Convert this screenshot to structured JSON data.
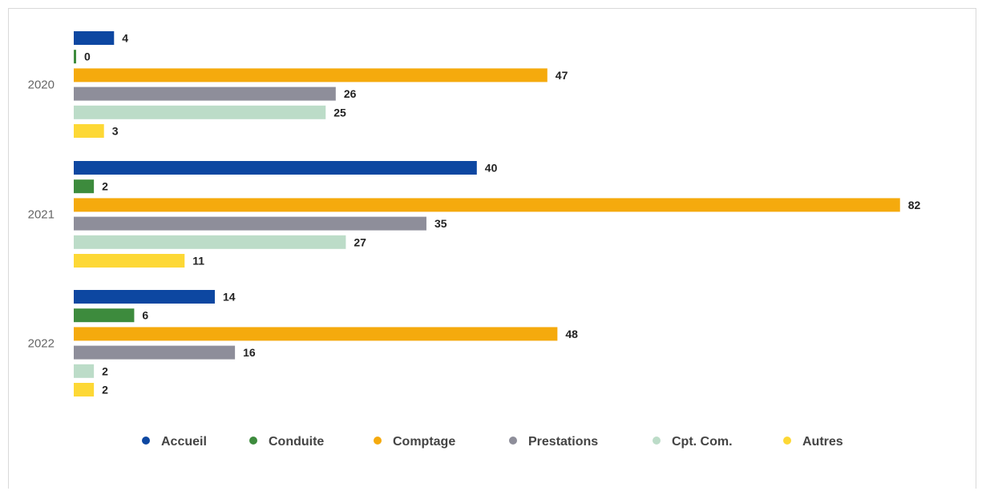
{
  "chart_data": {
    "type": "bar",
    "orientation": "horizontal",
    "title": "",
    "categories": [
      "2020",
      "2021",
      "2022"
    ],
    "series": [
      {
        "name": "Accueil",
        "color": "#0d47a1",
        "values": [
          4,
          40,
          14
        ]
      },
      {
        "name": "Conduite",
        "color": "#3d8b3d",
        "values": [
          0,
          2,
          6
        ]
      },
      {
        "name": "Comptage",
        "color": "#f5aa0d",
        "values": [
          47,
          82,
          48
        ]
      },
      {
        "name": "Prestations",
        "color": "#8e8e9a",
        "values": [
          26,
          35,
          16
        ]
      },
      {
        "name": "Cpt. Com.",
        "color": "#bcdcc8",
        "values": [
          25,
          27,
          2
        ]
      },
      {
        "name": "Autres",
        "color": "#fdd835",
        "values": [
          3,
          11,
          2
        ]
      }
    ],
    "xlim": [
      0,
      84
    ],
    "grid": false,
    "legend_position": "bottom",
    "show_data_labels": true
  }
}
